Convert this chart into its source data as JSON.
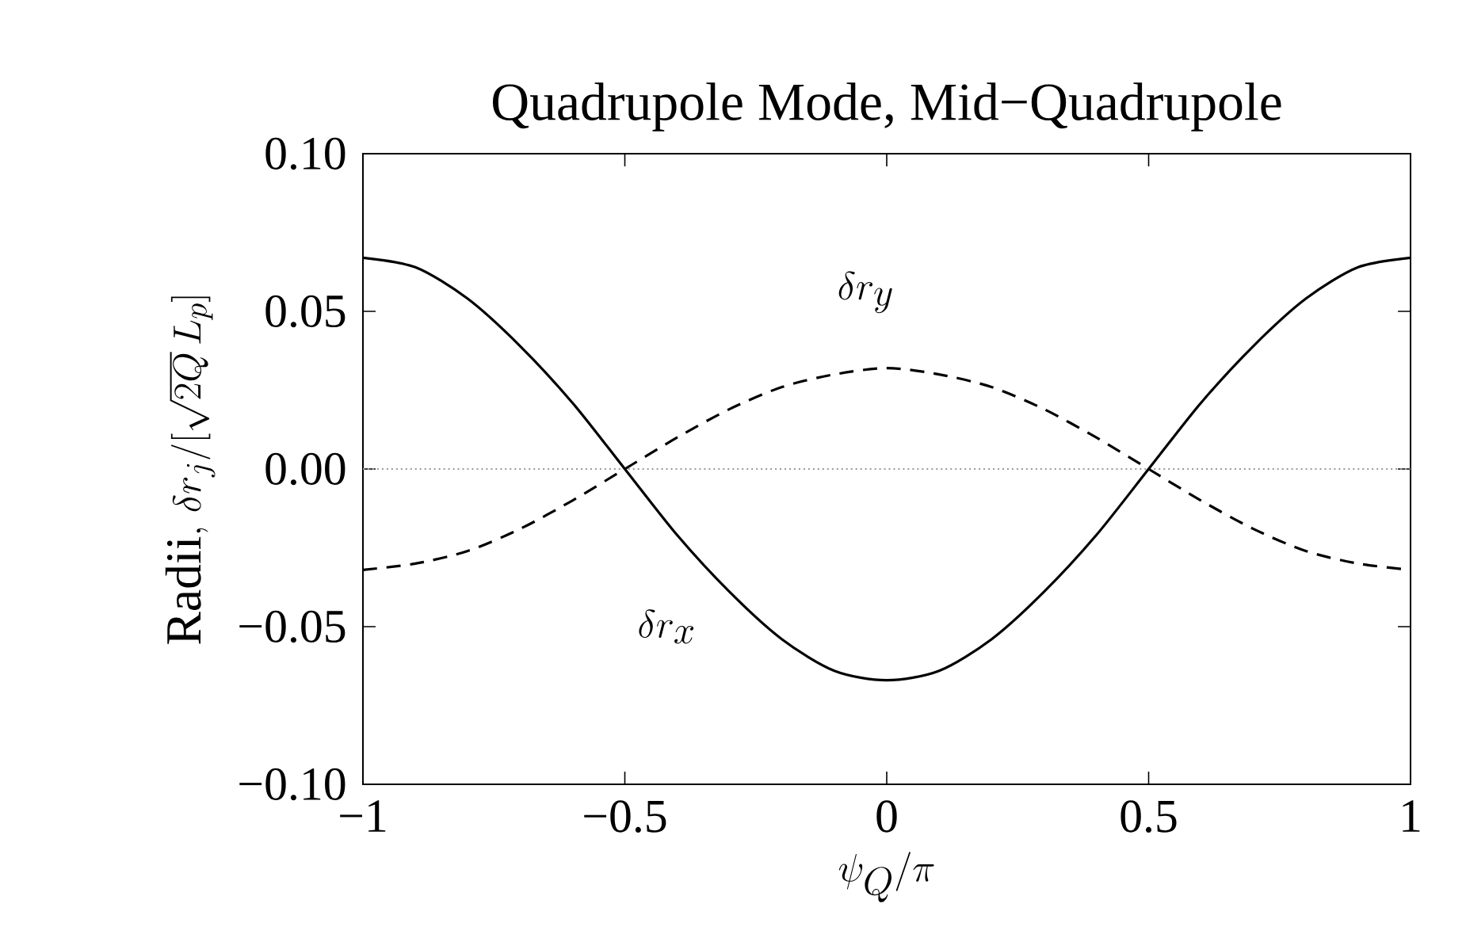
{
  "chart_data": {
    "type": "line",
    "title": "Quadrupole Mode, Mid−Quadrupole",
    "xlabel": "\\psi_Q/\\pi",
    "ylabel": "\\mathrm{Radii,}\\ \\delta r_j/[\\sqrt{2Q}\\,L_p]",
    "x": [
      -1,
      -0.9,
      -0.8,
      -0.7,
      -0.6,
      -0.5,
      -0.4,
      -0.3,
      -0.2,
      -0.1,
      0,
      0.1,
      0.2,
      0.3,
      0.4,
      0.5,
      0.6,
      0.7,
      0.8,
      0.9,
      1
    ],
    "series": [
      {
        "color": "#000000",
        "line_style": "solid",
        "values": [
          0.067,
          0.064,
          0.054,
          0.039,
          0.021,
          0,
          -0.021,
          -0.039,
          -0.054,
          -0.064,
          -0.067,
          -0.064,
          -0.054,
          -0.039,
          -0.021,
          0,
          0.021,
          0.039,
          0.054,
          0.064,
          0.067
        ]
      },
      {
        "color": "#000000",
        "line_style": "dashed",
        "values": [
          -0.032,
          -0.03,
          -0.026,
          -0.019,
          -0.01,
          0,
          0.01,
          0.019,
          0.026,
          0.03,
          0.032,
          0.03,
          0.026,
          0.019,
          0.01,
          0,
          -0.01,
          -0.019,
          -0.026,
          -0.03,
          -0.032
        ]
      }
    ],
    "annotations": [
      "\\delta r_y",
      "\\delta r_x"
    ],
    "ref_lines": [
      {
        "axis": "y",
        "value": 0,
        "color": "#999999",
        "line_style": "dotted"
      }
    ],
    "xlim": [
      -1,
      1
    ],
    "ylim": [
      -0.1,
      0.1
    ],
    "xticks": [
      {
        "value": -1,
        "label": "−1"
      },
      {
        "value": -0.5,
        "label": "−0.5"
      },
      0,
      0.5,
      1
    ],
    "yticks": [
      {
        "value": -0.1,
        "label": "−0.10"
      },
      {
        "value": -0.05,
        "label": "−0.05"
      },
      {
        "value": 0,
        "label": "0.00"
      },
      {
        "value": 0.05,
        "label": "0.05"
      },
      {
        "value": 0.1,
        "label": "0.10"
      }
    ]
  }
}
